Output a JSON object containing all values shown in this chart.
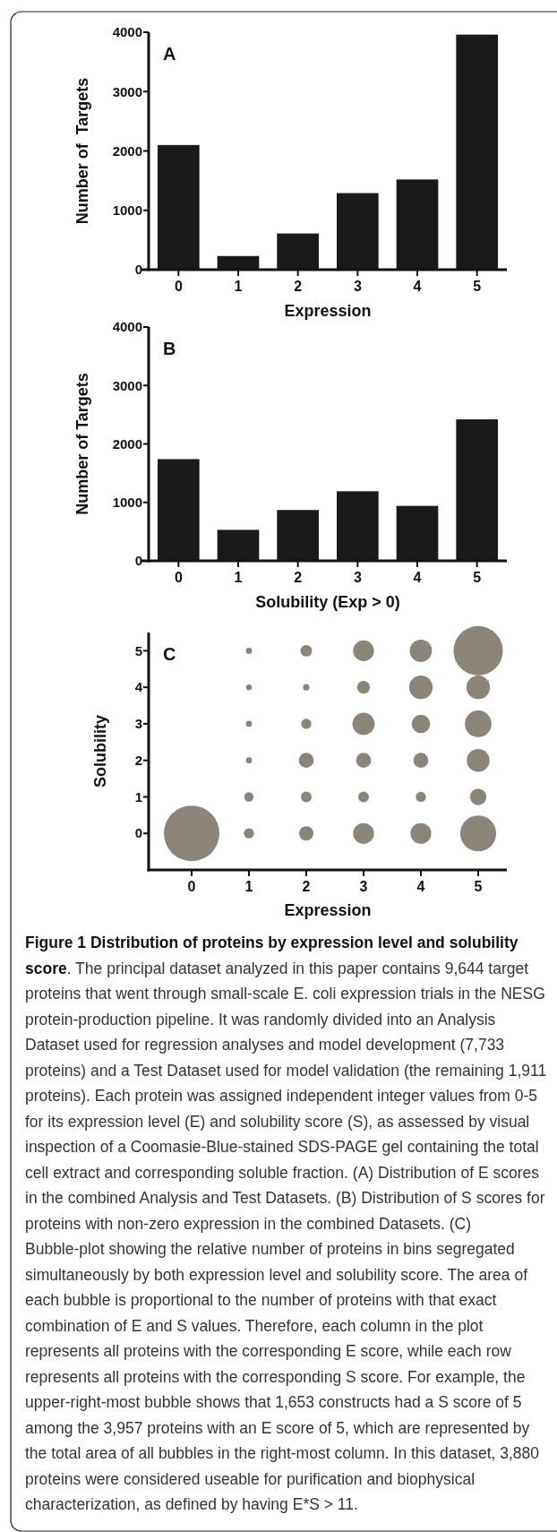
{
  "chart_data": [
    {
      "type": "bar",
      "title": "A",
      "categories": [
        "0",
        "1",
        "2",
        "3",
        "4",
        "5"
      ],
      "values": [
        2100,
        230,
        610,
        1290,
        1520,
        3960
      ],
      "color": "#1a1a1a",
      "xlabel": "Expression",
      "ylabel": "Number of  Targets",
      "ylim": [
        0,
        4000
      ],
      "yticks": [
        0,
        1000,
        2000,
        3000,
        4000
      ]
    },
    {
      "type": "bar",
      "title": "B",
      "categories": [
        "0",
        "1",
        "2",
        "3",
        "4",
        "5"
      ],
      "values": [
        1740,
        530,
        870,
        1190,
        940,
        2420
      ],
      "color": "#1a1a1a",
      "xlabel": "Solubility (Exp > 0)",
      "ylabel": "Number of Targets",
      "ylim": [
        0,
        4000
      ],
      "yticks": [
        0,
        1000,
        2000,
        3000,
        4000
      ]
    },
    {
      "type": "bubble",
      "title": "C",
      "xlabel": "Expression",
      "ylabel": "Solubility",
      "xlim": [
        -0.75,
        5.5
      ],
      "xticks": [
        0,
        1,
        2,
        3,
        4,
        5
      ],
      "ylim": [
        -1,
        5.5
      ],
      "yticks": [
        0,
        1,
        2,
        3,
        4,
        5
      ],
      "series": [
        {
          "color": "#8a8578",
          "x": [
            0,
            1,
            1,
            1,
            1,
            1,
            1,
            2,
            2,
            2,
            2,
            2,
            2,
            3,
            3,
            3,
            3,
            3,
            3,
            4,
            4,
            4,
            4,
            4,
            4,
            5,
            5,
            5,
            5,
            5,
            5
          ],
          "values": [
            0,
            0,
            1,
            2,
            3,
            4,
            5,
            0,
            1,
            2,
            3,
            4,
            5,
            0,
            1,
            2,
            3,
            4,
            5,
            0,
            1,
            2,
            3,
            4,
            5,
            0,
            1,
            2,
            3,
            4,
            5
          ],
          "sizes": [
            1,
            0.033,
            0.028,
            0.012,
            0.012,
            0.011,
            0.012,
            0.067,
            0.037,
            0.073,
            0.033,
            0.013,
            0.043,
            0.14,
            0.037,
            0.073,
            0.16,
            0.054,
            0.14,
            0.14,
            0.033,
            0.073,
            0.11,
            0.18,
            0.16,
            0.42,
            0.088,
            0.17,
            0.23,
            0.18,
            0.79
          ]
        }
      ]
    },
    {
      "type": "other",
      "title": "Figure 1 Distribution of proteins by expression level and solubility score",
      "annotations": [
        ". The principal dataset analyzed in this paper contains 9,644 target proteins that went through small-scale E. coli expression trials in the NESG protein-production pipeline. It was randomly divided into an Analysis Dataset used for regression analyses and model development (7,733 proteins) and a Test Dataset used for model validation (the remaining 1,911 proteins). Each protein was assigned independent integer values from 0-5 for its expression level (E) and solubility score (S), as assessed by visual inspection of a Coomasie-Blue-stained SDS-PAGE gel containing the total cell extract and corresponding soluble fraction. (A) Distribution of E scores in the combined Analysis and Test Datasets. (B) Distribution of S scores for proteins with non-zero expression in the combined Datasets. (C) Bubble-plot showing the relative number of proteins in bins segregated simultaneously by both expression level and solubility score. The area of each bubble is proportional to the number of proteins with that exact combination of E and S values. Therefore, each column in the plot represents all proteins with the corresponding E score, while each row represents all proteins with the corresponding S score. For example, the upper-right-most bubble shows that 1,653 constructs had a S score of 5 among the 3,957 proteins with an E score of 5, which are represented by the total area of all bubbles in the right-most column. In this dataset, 3,880 proteins were considered useable for purification and biophysical characterization, as defined by having E*S > 11."
      ]
    }
  ]
}
